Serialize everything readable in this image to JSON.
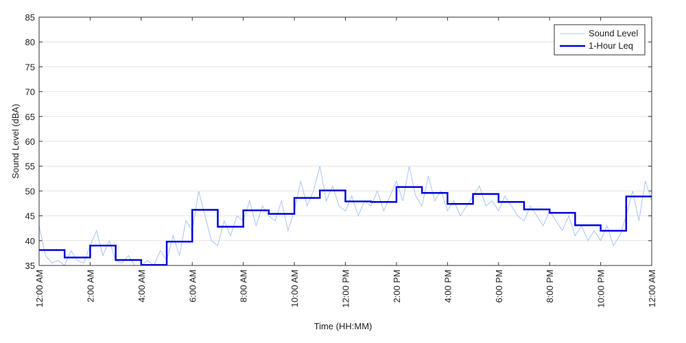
{
  "chart_data": {
    "type": "line",
    "xlabel": "Time (HH:MM)",
    "ylabel": "Sound Level (dBA)",
    "xlim": [
      0,
      24
    ],
    "ylim": [
      35,
      85
    ],
    "xticks": [
      {
        "value": 0,
        "label": "12:00 AM"
      },
      {
        "value": 2,
        "label": "2:00 AM"
      },
      {
        "value": 4,
        "label": "4:00 AM"
      },
      {
        "value": 6,
        "label": "6:00 AM"
      },
      {
        "value": 8,
        "label": "8:00 AM"
      },
      {
        "value": 10,
        "label": "10:00 AM"
      },
      {
        "value": 12,
        "label": "12:00 PM"
      },
      {
        "value": 14,
        "label": "2:00 PM"
      },
      {
        "value": 16,
        "label": "4:00 PM"
      },
      {
        "value": 18,
        "label": "6:00 PM"
      },
      {
        "value": 20,
        "label": "8:00 PM"
      },
      {
        "value": 22,
        "label": "10:00 PM"
      },
      {
        "value": 24,
        "label": "12:00 AM"
      }
    ],
    "yticks": [
      35,
      40,
      45,
      50,
      55,
      60,
      65,
      70,
      75,
      80,
      85
    ],
    "grid": true,
    "legend": "upper right",
    "series": [
      {
        "name": "Sound Level",
        "color": "#a9c4f5",
        "step": false,
        "x": [
          0,
          0.25,
          0.5,
          0.75,
          1,
          1.25,
          1.5,
          1.75,
          2,
          2.25,
          2.5,
          2.75,
          3,
          3.25,
          3.5,
          3.75,
          4,
          4.25,
          4.5,
          4.75,
          5,
          5.25,
          5.5,
          5.75,
          6,
          6.25,
          6.5,
          6.75,
          7,
          7.25,
          7.5,
          7.75,
          8,
          8.25,
          8.5,
          8.75,
          9,
          9.25,
          9.5,
          9.75,
          10,
          10.25,
          10.5,
          10.75,
          11,
          11.25,
          11.5,
          11.75,
          12,
          12.25,
          12.5,
          12.75,
          13,
          13.25,
          13.5,
          13.75,
          14,
          14.25,
          14.5,
          14.75,
          15,
          15.25,
          15.5,
          15.75,
          16,
          16.25,
          16.5,
          16.75,
          17,
          17.25,
          17.5,
          17.75,
          18,
          18.25,
          18.5,
          18.75,
          19,
          19.25,
          19.5,
          19.75,
          20,
          20.25,
          20.5,
          20.75,
          21,
          21.25,
          21.5,
          21.75,
          22,
          22.25,
          22.5,
          22.75,
          23,
          23.25,
          23.5,
          23.75,
          24
        ],
        "values": [
          43,
          37,
          35.5,
          36,
          35,
          38,
          36,
          35.5,
          39,
          42,
          37,
          40,
          36,
          35.5,
          37,
          35,
          35,
          36,
          35,
          38,
          36,
          41,
          37,
          44,
          42,
          50,
          45,
          40,
          39,
          44,
          41,
          45,
          44,
          48,
          43,
          47,
          45,
          44,
          48,
          42,
          46,
          52,
          47,
          50,
          55,
          48,
          51,
          47,
          46,
          49,
          45,
          48,
          47,
          50,
          46,
          49,
          52,
          48,
          55,
          49,
          47,
          53,
          48,
          50,
          46,
          48,
          45,
          47,
          49,
          51,
          47,
          48,
          46,
          49,
          47,
          45,
          44,
          47,
          45,
          43,
          46,
          44,
          42,
          45,
          41,
          43,
          40,
          42,
          40,
          43,
          39,
          41,
          45,
          50,
          44,
          52,
          48
        ]
      },
      {
        "name": "1-Hour Leq",
        "color": "#0000e0",
        "step": true,
        "x": [
          0,
          1,
          2,
          3,
          4,
          5,
          6,
          7,
          8,
          9,
          10,
          11,
          12,
          13,
          14,
          15,
          16,
          17,
          18,
          19,
          20,
          21,
          22,
          23
        ],
        "values": [
          38.1,
          36.6,
          39.0,
          36.1,
          35.1,
          39.8,
          46.2,
          42.8,
          46.1,
          45.4,
          48.6,
          50.1,
          47.9,
          47.8,
          50.8,
          49.6,
          47.4,
          49.4,
          47.8,
          46.3,
          45.6,
          43.1,
          42.0,
          48.9
        ]
      }
    ]
  }
}
